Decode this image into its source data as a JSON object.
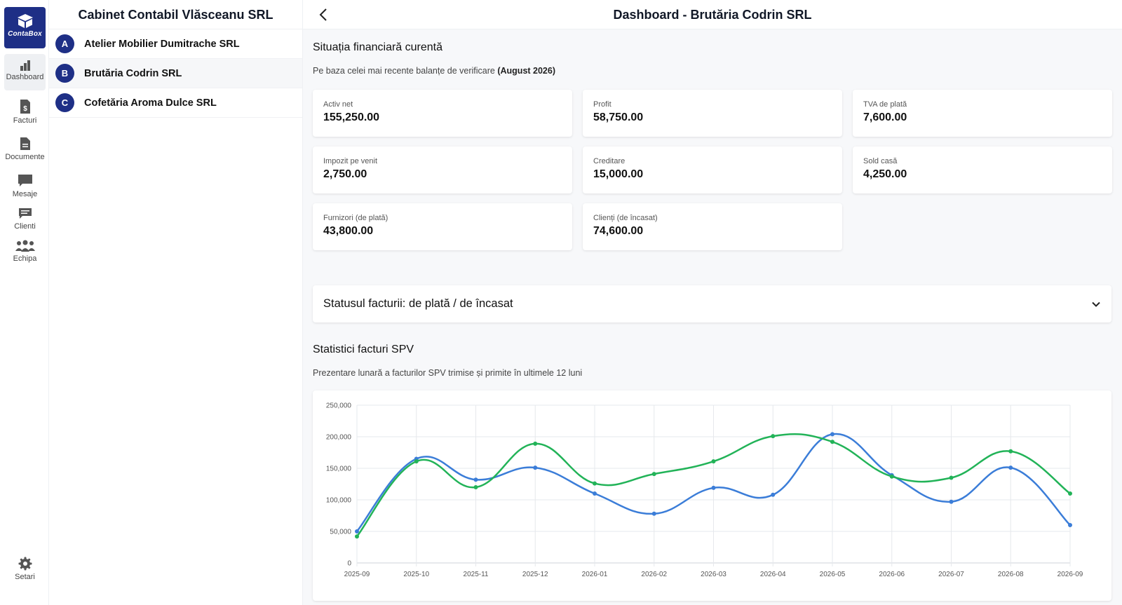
{
  "app": {
    "logo_text": "ContaBox"
  },
  "rail": {
    "items": [
      {
        "label": "Dashboard",
        "icon": "chart-bars-icon"
      },
      {
        "label": "Facturi",
        "icon": "invoice-icon"
      },
      {
        "label": "Documente",
        "icon": "document-icon"
      },
      {
        "label": "Mesaje",
        "icon": "message-icon"
      },
      {
        "label": "Clienti",
        "icon": "chat-clients-icon"
      },
      {
        "label": "Echipa",
        "icon": "team-icon"
      }
    ],
    "settings_label": "Setari"
  },
  "clients": {
    "title": "Cabinet Contabil Vlăsceanu SRL",
    "items": [
      {
        "initial": "A",
        "name": "Atelier Mobilier Dumitrache SRL"
      },
      {
        "initial": "B",
        "name": "Brutăria Codrin SRL"
      },
      {
        "initial": "C",
        "name": "Cofetăria Aroma Dulce SRL"
      }
    ]
  },
  "header": {
    "title": "Dashboard - Brutăria Codrin SRL"
  },
  "financial": {
    "title": "Situația financiară curentă",
    "subtitle_prefix": "Pe baza celei mai recente balanțe de verificare ",
    "subtitle_period": "(August 2026)",
    "cards": [
      {
        "label": "Activ net",
        "value": "155,250.00"
      },
      {
        "label": "Profit",
        "value": "58,750.00"
      },
      {
        "label": "TVA de plată",
        "value": "7,600.00"
      },
      {
        "label": "Impozit pe venit",
        "value": "2,750.00"
      },
      {
        "label": "Creditare",
        "value": "15,000.00"
      },
      {
        "label": "Sold casă",
        "value": "4,250.00"
      },
      {
        "label": "Furnizori (de plată)",
        "value": "43,800.00"
      },
      {
        "label": "Clienți (de încasat)",
        "value": "74,600.00"
      }
    ]
  },
  "invoice_status": {
    "title": "Statusul facturii: de plată / de încasat"
  },
  "spv": {
    "title": "Statistici facturi SPV",
    "subtitle": "Prezentare lunară a facturilor SPV trimise și primite în ultimele 12 luni"
  },
  "chart_data": {
    "type": "line",
    "x": [
      "2025-09",
      "2025-10",
      "2025-11",
      "2025-12",
      "2026-01",
      "2026-02",
      "2026-03",
      "2026-04",
      "2026-05",
      "2026-06",
      "2026-07",
      "2026-08",
      "2026-09"
    ],
    "ylim": [
      0,
      250000
    ],
    "yticks": [
      "0",
      "50,000",
      "100,000",
      "150,000",
      "200,000",
      "250,000"
    ],
    "grid": true,
    "series": [
      {
        "color": "#3b7dd8",
        "values": [
          50000,
          165000,
          132000,
          151000,
          110000,
          78000,
          119000,
          108000,
          204000,
          139000,
          97000,
          151000,
          60000
        ]
      },
      {
        "color": "#22b358",
        "values": [
          42000,
          161000,
          120000,
          189000,
          126000,
          141000,
          161000,
          201000,
          192000,
          137000,
          135000,
          177000,
          110000
        ]
      }
    ]
  }
}
